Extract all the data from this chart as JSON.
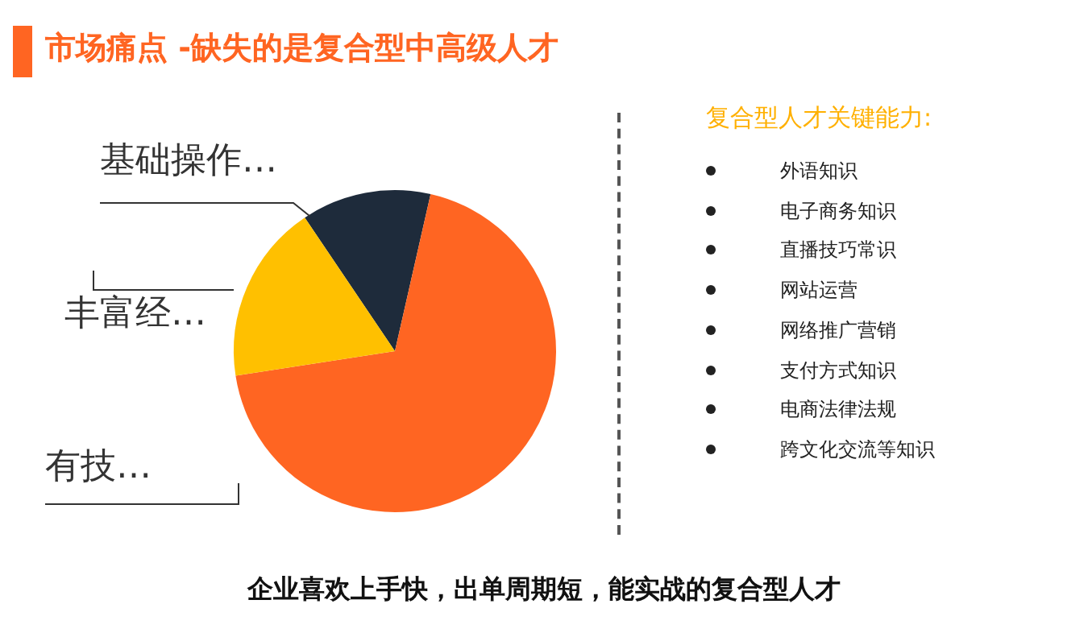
{
  "chart_data": {
    "type": "pie",
    "title": "市场痛点 -缺失的是复合型中高级人才",
    "categories": [
      "基础操作…",
      "有技…",
      "丰富经…"
    ],
    "values": [
      13,
      69,
      18
    ],
    "colors": [
      "#1e2b3b",
      "#ff6522",
      "#ffc000"
    ],
    "legend": false,
    "annotations": [
      "复合型人才关键能力:",
      "外语知识",
      "电子商务知识",
      "直播技巧常识",
      "网站运营",
      "网络推广营销",
      "支付方式知识",
      "电商法律法规",
      "跨文化交流等知识",
      "企业喜欢上手快，出单周期短，能实战的复合型人才"
    ]
  }
}
